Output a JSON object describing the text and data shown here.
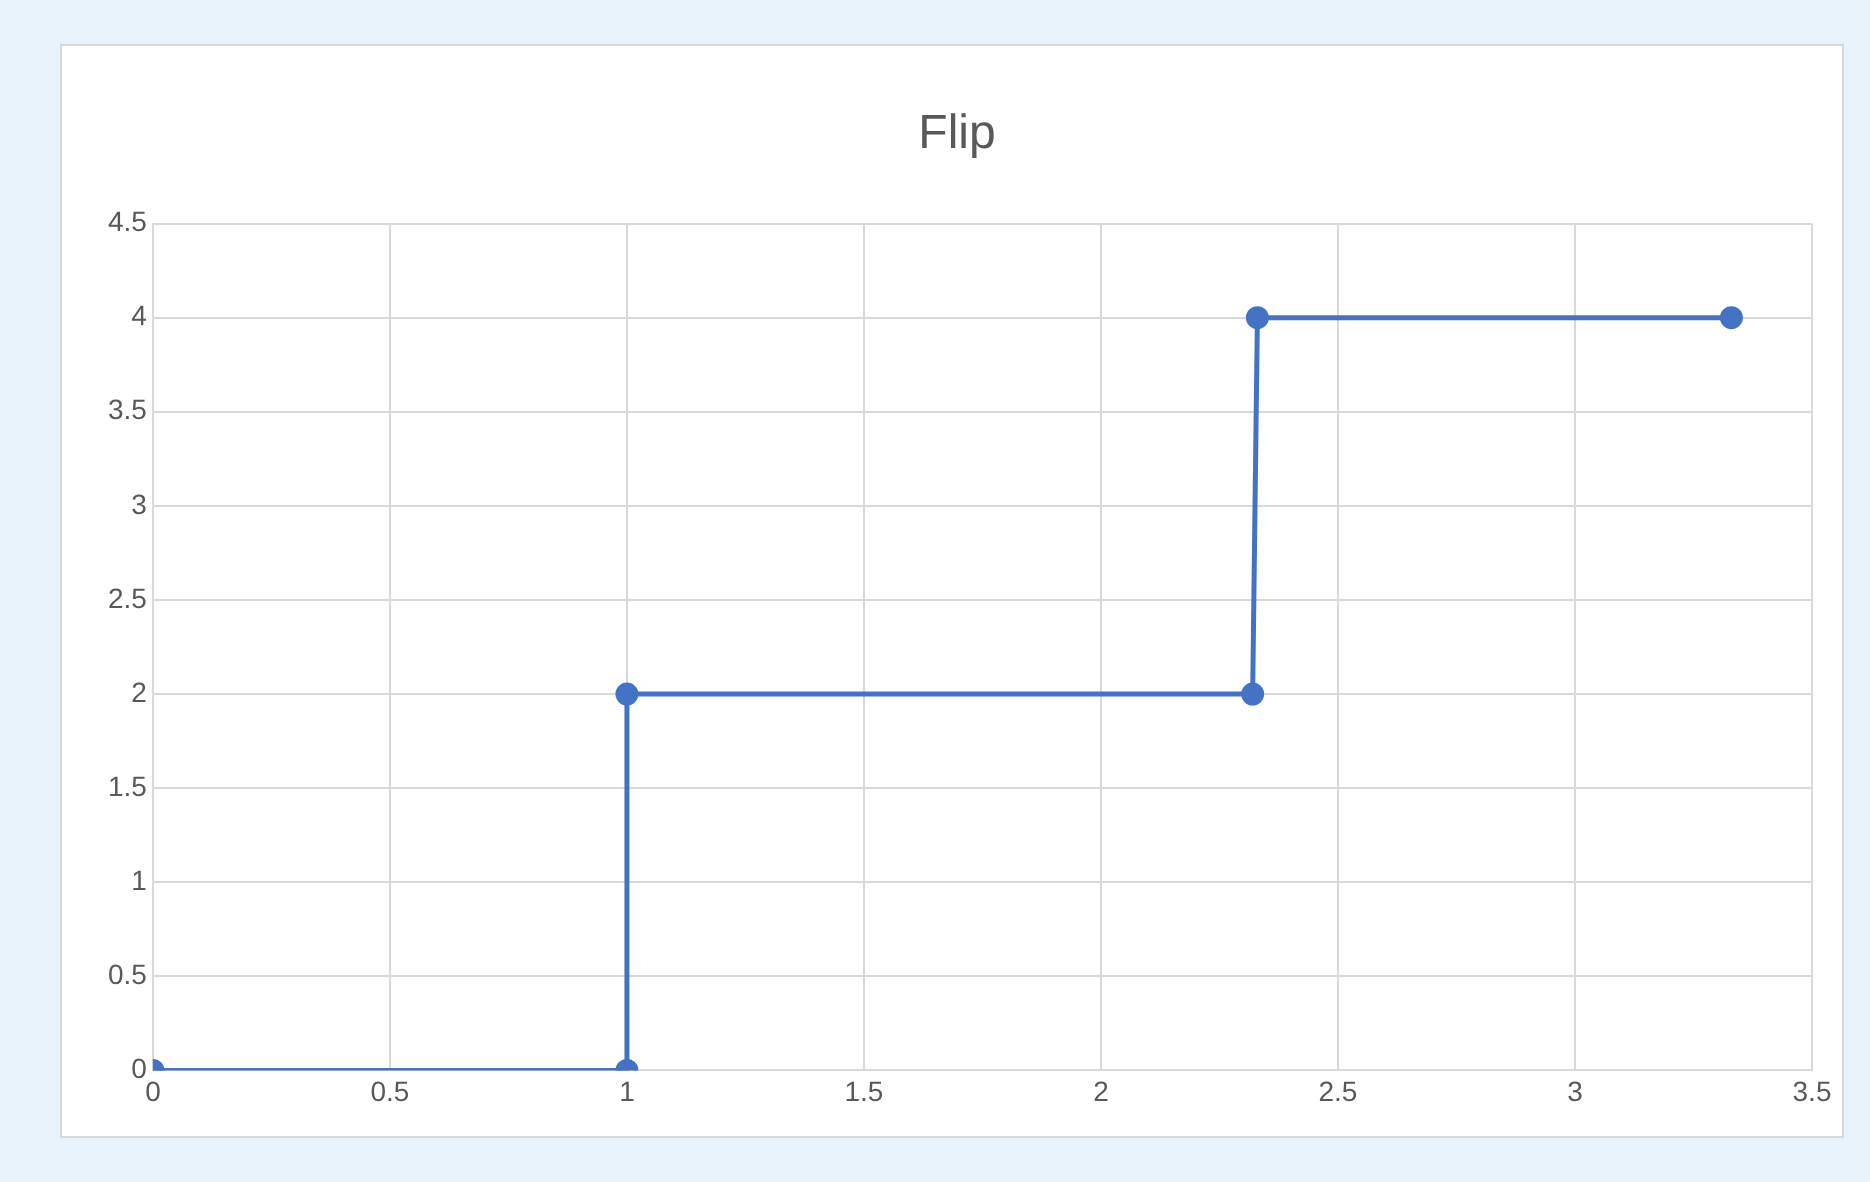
{
  "chart_data": {
    "type": "line",
    "title": "Flip",
    "x": [
      0,
      1,
      1,
      2.32,
      2.33,
      3.33
    ],
    "series": [
      {
        "color": "#4472c4",
        "values": [
          0,
          0,
          2,
          2,
          4,
          4
        ]
      }
    ],
    "xlim": [
      0,
      3.5
    ],
    "xticks": [
      0,
      0.5,
      1,
      1.5,
      2,
      2.5,
      3,
      3.5
    ],
    "ylim": [
      0,
      4.5
    ],
    "yticks": [
      0,
      0.5,
      1,
      1.5,
      2,
      2.5,
      3,
      3.5,
      4,
      4.5
    ],
    "grid": true,
    "legend": false,
    "marker": "circle",
    "line_style": "solid"
  }
}
